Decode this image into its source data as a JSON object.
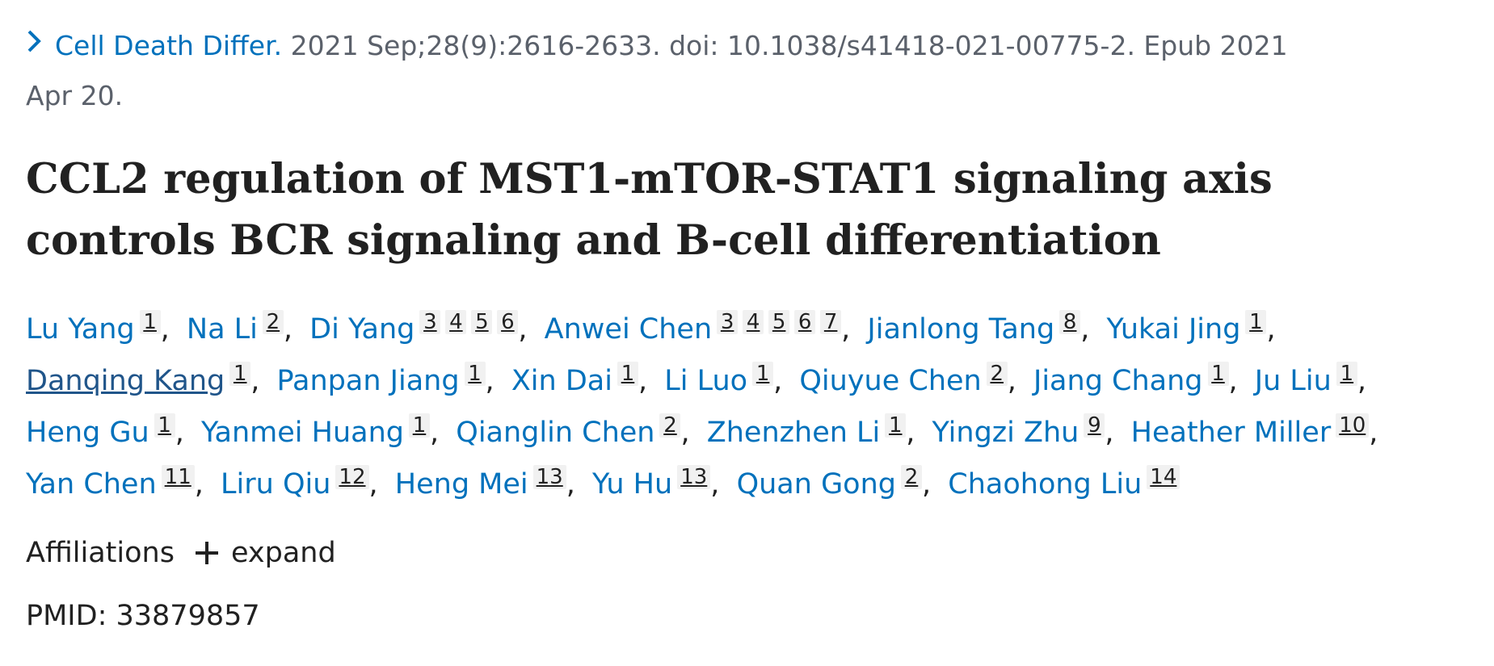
{
  "citation": {
    "journal": "Cell Death Differ.",
    "details": "2021 Sep;28(9):2616-2633. doi: 10.1038/s41418-021-00775-2. Epub 2021 Apr 20."
  },
  "title": "CCL2 regulation of MST1-mTOR-STAT1 signaling axis controls BCR signaling and B-cell differentiation",
  "authors": [
    {
      "name": "Lu Yang",
      "affiliations": [
        "1"
      ]
    },
    {
      "name": "Na Li",
      "affiliations": [
        "2"
      ]
    },
    {
      "name": "Di Yang",
      "affiliations": [
        "3",
        "4",
        "5",
        "6"
      ]
    },
    {
      "name": "Anwei Chen",
      "affiliations": [
        "3",
        "4",
        "5",
        "6",
        "7"
      ]
    },
    {
      "name": "Jianlong Tang",
      "affiliations": [
        "8"
      ]
    },
    {
      "name": "Yukai Jing",
      "affiliations": [
        "1"
      ]
    },
    {
      "name": "Danqing Kang",
      "affiliations": [
        "1"
      ],
      "hover": true
    },
    {
      "name": "Panpan Jiang",
      "affiliations": [
        "1"
      ]
    },
    {
      "name": "Xin Dai",
      "affiliations": [
        "1"
      ]
    },
    {
      "name": "Li Luo",
      "affiliations": [
        "1"
      ]
    },
    {
      "name": "Qiuyue Chen",
      "affiliations": [
        "2"
      ]
    },
    {
      "name": "Jiang Chang",
      "affiliations": [
        "1"
      ]
    },
    {
      "name": "Ju Liu",
      "affiliations": [
        "1"
      ]
    },
    {
      "name": "Heng Gu",
      "affiliations": [
        "1"
      ]
    },
    {
      "name": "Yanmei Huang",
      "affiliations": [
        "1"
      ]
    },
    {
      "name": "Qianglin Chen",
      "affiliations": [
        "2"
      ]
    },
    {
      "name": "Zhenzhen Li",
      "affiliations": [
        "1"
      ]
    },
    {
      "name": "Yingzi Zhu",
      "affiliations": [
        "9"
      ]
    },
    {
      "name": "Heather Miller",
      "affiliations": [
        "10"
      ]
    },
    {
      "name": "Yan Chen",
      "affiliations": [
        "11"
      ]
    },
    {
      "name": "Liru Qiu",
      "affiliations": [
        "12"
      ]
    },
    {
      "name": "Heng Mei",
      "affiliations": [
        "13"
      ]
    },
    {
      "name": "Yu Hu",
      "affiliations": [
        "13"
      ]
    },
    {
      "name": "Quan Gong",
      "affiliations": [
        "2"
      ]
    },
    {
      "name": "Chaohong Liu",
      "affiliations": [
        "14"
      ]
    }
  ],
  "affiliations_section": {
    "label": "Affiliations",
    "expand_label": "expand"
  },
  "pmid": "PMID: 33879857",
  "colors": {
    "link": "#0071bc",
    "text": "#212121",
    "muted": "#5b616b",
    "badge_bg": "#f1f1f1"
  }
}
